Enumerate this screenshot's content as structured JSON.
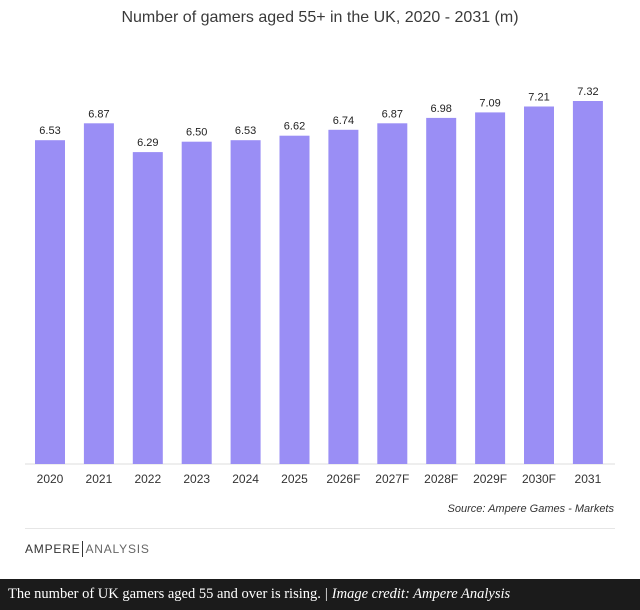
{
  "chart_data": {
    "type": "bar",
    "title": "Number of gamers aged 55+ in the UK, 2020 - 2031 (m)",
    "categories": [
      "2020",
      "2021",
      "2022",
      "2023",
      "2024",
      "2025",
      "2026F",
      "2027F",
      "2028F",
      "2029F",
      "2030F",
      "2031"
    ],
    "values": [
      6.53,
      6.87,
      6.29,
      6.5,
      6.53,
      6.62,
      6.74,
      6.87,
      6.98,
      7.09,
      7.21,
      7.32
    ],
    "value_labels": [
      "6.53",
      "6.87",
      "6.29",
      "6.50",
      "6.53",
      "6.62",
      "6.74",
      "6.87",
      "6.98",
      "7.09",
      "7.21",
      "7.32"
    ],
    "xlabel": "",
    "ylabel": "",
    "ylim": [
      0,
      7.32
    ],
    "grid": false,
    "legend": "none",
    "bar_color": "#9a8ef5"
  },
  "source_text": "Source:  Ampere Games - Markets",
  "brand": {
    "part1": "AMPERE",
    "part2": "ANALYSIS"
  },
  "caption": {
    "text": "The number of UK gamers aged 55 and over is rising.",
    "separator": "|",
    "credit": "Image credit: Ampere Analysis"
  }
}
